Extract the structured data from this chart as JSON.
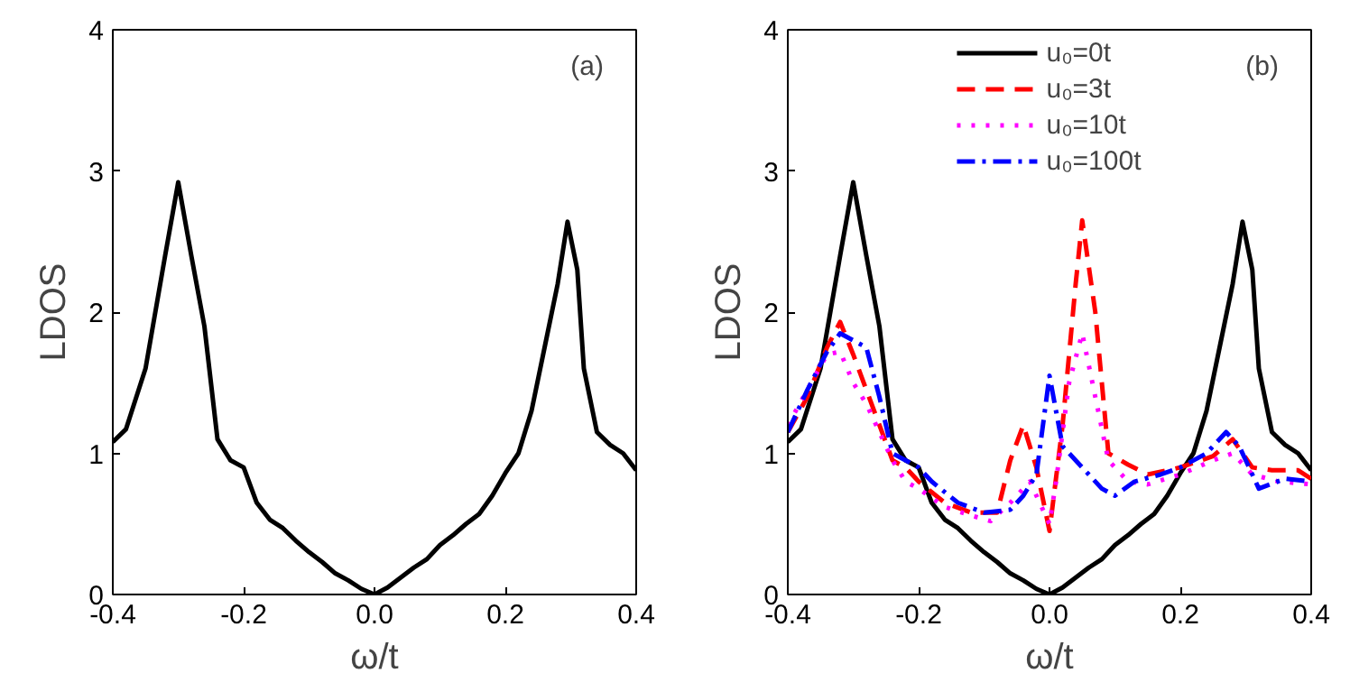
{
  "chart_data": [
    {
      "type": "line",
      "xlabel": "ω/t",
      "ylabel": "LDOS",
      "annotations": [
        "(a)"
      ],
      "xlim": [
        -0.4,
        0.4
      ],
      "ylim": [
        0,
        4
      ],
      "xticks": [
        -0.4,
        -0.2,
        {
          "value": 0,
          "label": "0.0"
        },
        0.2,
        0.4
      ],
      "yticks": [
        0,
        1,
        2,
        3,
        4
      ],
      "grid": false,
      "legend": false,
      "marker": "none",
      "series": [
        {
          "color": "#000000",
          "line_style": "solid",
          "x": [
            -0.4,
            -0.38,
            -0.35,
            -0.32,
            -0.3,
            -0.28,
            -0.26,
            -0.24,
            -0.22,
            -0.2,
            -0.18,
            -0.16,
            -0.14,
            -0.12,
            -0.1,
            -0.08,
            -0.06,
            -0.04,
            -0.02,
            0,
            0.02,
            0.04,
            0.06,
            0.08,
            0.1,
            0.12,
            0.14,
            0.16,
            0.18,
            0.2,
            0.22,
            0.24,
            0.26,
            0.28,
            0.295,
            0.31,
            0.32,
            0.34,
            0.36,
            0.38,
            0.4
          ],
          "values": [
            1.08,
            1.17,
            1.6,
            2.4,
            2.92,
            2.4,
            1.9,
            1.1,
            0.95,
            0.9,
            0.65,
            0.53,
            0.47,
            0.38,
            0.3,
            0.23,
            0.15,
            0.1,
            0.04,
            0.0,
            0.05,
            0.12,
            0.19,
            0.25,
            0.35,
            0.42,
            0.5,
            0.57,
            0.7,
            0.86,
            1.0,
            1.3,
            1.75,
            2.2,
            2.64,
            2.3,
            1.6,
            1.15,
            1.06,
            1.0,
            0.88
          ]
        }
      ]
    },
    {
      "type": "line",
      "xlabel": "ω/t",
      "ylabel": "LDOS",
      "annotations": [
        "(b)"
      ],
      "xlim": [
        -0.4,
        0.4
      ],
      "ylim": [
        0,
        4
      ],
      "xticks": [
        -0.4,
        -0.2,
        {
          "value": 0,
          "label": "0.0"
        },
        0.2,
        0.4
      ],
      "yticks": [
        0,
        1,
        2,
        3,
        4
      ],
      "grid": false,
      "legend": "top",
      "marker": "none",
      "series": [
        {
          "name": "u₀=0t",
          "color": "#000000",
          "line_style": "solid",
          "x": [
            -0.4,
            -0.38,
            -0.35,
            -0.32,
            -0.3,
            -0.28,
            -0.26,
            -0.24,
            -0.22,
            -0.2,
            -0.18,
            -0.16,
            -0.14,
            -0.12,
            -0.1,
            -0.08,
            -0.06,
            -0.04,
            -0.02,
            0,
            0.02,
            0.04,
            0.06,
            0.08,
            0.1,
            0.12,
            0.14,
            0.16,
            0.18,
            0.2,
            0.22,
            0.24,
            0.26,
            0.28,
            0.295,
            0.31,
            0.32,
            0.34,
            0.36,
            0.38,
            0.4
          ],
          "values": [
            1.08,
            1.17,
            1.6,
            2.4,
            2.92,
            2.4,
            1.9,
            1.1,
            0.95,
            0.9,
            0.65,
            0.53,
            0.47,
            0.38,
            0.3,
            0.23,
            0.15,
            0.1,
            0.04,
            0.0,
            0.05,
            0.12,
            0.19,
            0.25,
            0.35,
            0.42,
            0.5,
            0.57,
            0.7,
            0.86,
            1.0,
            1.3,
            1.75,
            2.2,
            2.64,
            2.3,
            1.6,
            1.15,
            1.06,
            1.0,
            0.88
          ]
        },
        {
          "name": "u₀=3t",
          "color": "#ff0000",
          "line_style": "dashed",
          "x": [
            -0.4,
            -0.37,
            -0.34,
            -0.32,
            -0.3,
            -0.28,
            -0.26,
            -0.24,
            -0.22,
            -0.2,
            -0.16,
            -0.12,
            -0.08,
            -0.06,
            -0.04,
            -0.02,
            0.0,
            0.02,
            0.04,
            0.05,
            0.07,
            0.09,
            0.12,
            0.15,
            0.2,
            0.25,
            0.28,
            0.31,
            0.34,
            0.38,
            0.4
          ],
          "values": [
            1.15,
            1.4,
            1.75,
            1.93,
            1.7,
            1.45,
            1.2,
            0.95,
            0.9,
            0.8,
            0.65,
            0.58,
            0.58,
            0.95,
            1.2,
            0.9,
            0.45,
            1.2,
            2.2,
            2.65,
            2.0,
            1.0,
            0.92,
            0.85,
            0.9,
            0.98,
            1.1,
            0.9,
            0.88,
            0.88,
            0.82
          ]
        },
        {
          "name": "u₀=10t",
          "color": "#ff00ff",
          "line_style": "dotted",
          "x": [
            -0.4,
            -0.37,
            -0.34,
            -0.32,
            -0.3,
            -0.28,
            -0.26,
            -0.24,
            -0.22,
            -0.2,
            -0.16,
            -0.12,
            -0.09,
            -0.06,
            -0.03,
            -0.01,
            0.0,
            0.01,
            0.03,
            0.05,
            0.07,
            0.09,
            0.12,
            0.15,
            0.2,
            0.25,
            0.28,
            0.31,
            0.35,
            0.4
          ],
          "values": [
            1.2,
            1.45,
            1.7,
            1.72,
            1.5,
            1.35,
            1.15,
            0.95,
            0.8,
            0.75,
            0.62,
            0.56,
            0.52,
            0.65,
            0.8,
            0.6,
            0.5,
            0.8,
            1.5,
            1.85,
            1.4,
            0.95,
            0.8,
            0.78,
            0.85,
            0.95,
            1.0,
            0.85,
            0.8,
            0.78
          ]
        },
        {
          "name": "u₀=100t",
          "color": "#0000ff",
          "line_style": "dashdot",
          "x": [
            -0.4,
            -0.37,
            -0.34,
            -0.32,
            -0.3,
            -0.28,
            -0.26,
            -0.24,
            -0.22,
            -0.2,
            -0.18,
            -0.14,
            -0.1,
            -0.06,
            -0.04,
            -0.02,
            0.0,
            0.02,
            0.05,
            0.08,
            0.1,
            0.13,
            0.17,
            0.2,
            0.24,
            0.27,
            0.29,
            0.31,
            0.32,
            0.36,
            0.4
          ],
          "values": [
            1.15,
            1.45,
            1.72,
            1.85,
            1.8,
            1.75,
            1.4,
            1.0,
            0.95,
            0.9,
            0.8,
            0.65,
            0.58,
            0.6,
            0.7,
            0.85,
            1.55,
            1.05,
            0.9,
            0.75,
            0.7,
            0.8,
            0.85,
            0.9,
            1.0,
            1.15,
            1.05,
            0.85,
            0.75,
            0.82,
            0.8
          ]
        }
      ]
    }
  ]
}
